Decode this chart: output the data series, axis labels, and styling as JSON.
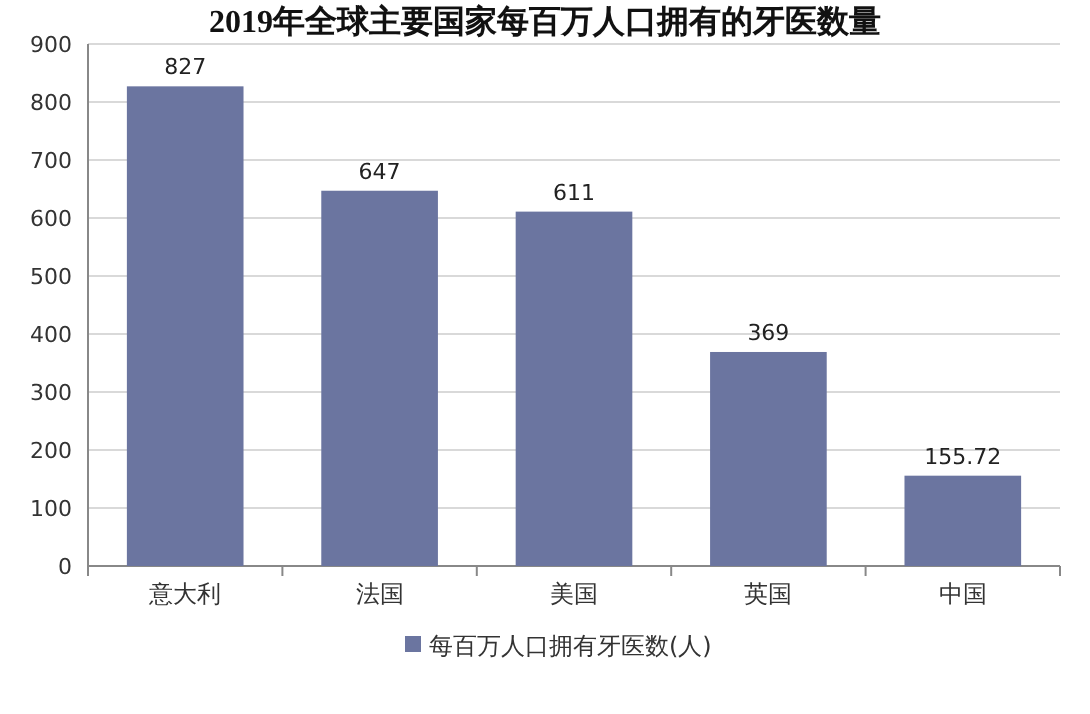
{
  "chart_data": {
    "type": "bar",
    "title": "2019年全球主要国家每百万人口拥有的牙医数量",
    "categories": [
      "意大利",
      "法国",
      "美国",
      "英国",
      "中国"
    ],
    "series": [
      {
        "name": "每百万人口拥有牙医数(人)",
        "color": "#6b75a0",
        "values": [
          827,
          647,
          611,
          369,
          155.72
        ]
      }
    ],
    "ylim": [
      0,
      900
    ],
    "yticks": [
      0,
      100,
      200,
      300,
      400,
      500,
      600,
      700,
      800,
      900
    ],
    "grid": "y",
    "legend": "bottom",
    "data_labels": true
  }
}
